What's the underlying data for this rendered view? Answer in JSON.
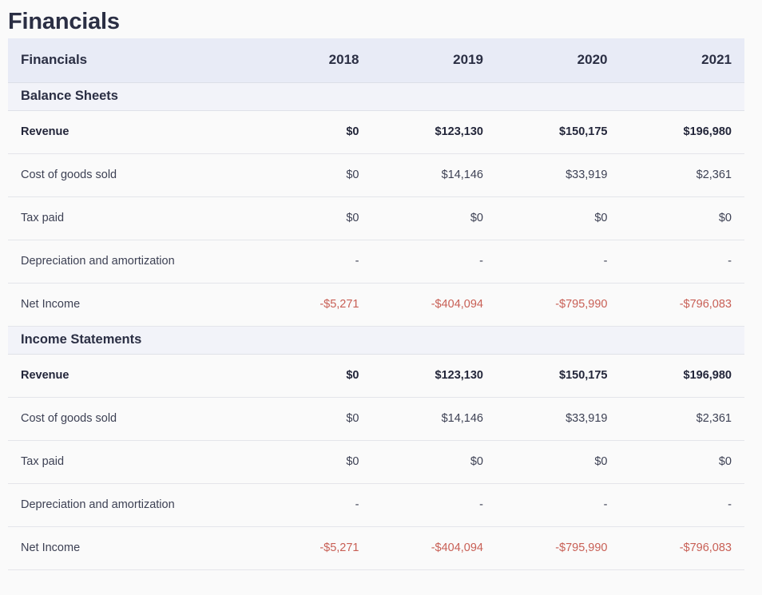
{
  "page": {
    "title": "Financials"
  },
  "table": {
    "header": {
      "label": "Financials",
      "years": [
        "2018",
        "2019",
        "2020",
        "2021"
      ]
    },
    "sections": [
      {
        "title": "Balance Sheets",
        "rows": [
          {
            "label": "Revenue",
            "values": [
              "$0",
              "$123,130",
              "$150,175",
              "$196,980"
            ],
            "bold": true,
            "negative": false
          },
          {
            "label": "Cost of goods sold",
            "values": [
              "$0",
              "$14,146",
              "$33,919",
              "$2,361"
            ],
            "bold": false,
            "negative": false
          },
          {
            "label": "Tax paid",
            "values": [
              "$0",
              "$0",
              "$0",
              "$0"
            ],
            "bold": false,
            "negative": false
          },
          {
            "label": "Depreciation and amortization",
            "values": [
              "-",
              "-",
              "-",
              "-"
            ],
            "bold": false,
            "negative": false
          },
          {
            "label": "Net Income",
            "values": [
              "-$5,271",
              "-$404,094",
              "-$795,990",
              "-$796,083"
            ],
            "bold": false,
            "negative": true
          }
        ]
      },
      {
        "title": "Income Statements",
        "rows": [
          {
            "label": "Revenue",
            "values": [
              "$0",
              "$123,130",
              "$150,175",
              "$196,980"
            ],
            "bold": true,
            "negative": false
          },
          {
            "label": "Cost of goods sold",
            "values": [
              "$0",
              "$14,146",
              "$33,919",
              "$2,361"
            ],
            "bold": false,
            "negative": false
          },
          {
            "label": "Tax paid",
            "values": [
              "$0",
              "$0",
              "$0",
              "$0"
            ],
            "bold": false,
            "negative": false
          },
          {
            "label": "Depreciation and amortization",
            "values": [
              "-",
              "-",
              "-",
              "-"
            ],
            "bold": false,
            "negative": false
          },
          {
            "label": "Net Income",
            "values": [
              "-$5,271",
              "-$404,094",
              "-$795,990",
              "-$796,083"
            ],
            "bold": false,
            "negative": true
          }
        ]
      }
    ]
  },
  "colors": {
    "header_bg": "#e8ebf6",
    "section_bg": "#f2f3f9",
    "negative_text": "#c85f55",
    "primary_text": "#2b2f44"
  }
}
